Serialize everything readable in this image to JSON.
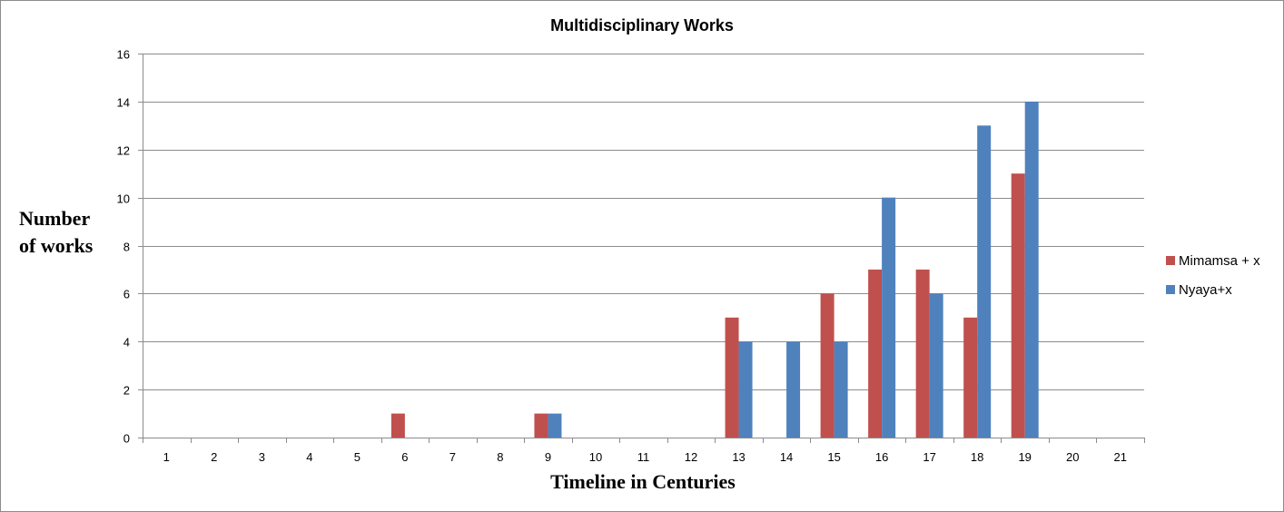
{
  "chart_data": {
    "type": "bar",
    "title": "Multidisciplinary Works",
    "xlabel": "Timeline in Centuries",
    "ylabel_lines": [
      "Number",
      "of works"
    ],
    "categories": [
      "1",
      "2",
      "3",
      "4",
      "5",
      "6",
      "7",
      "8",
      "9",
      "10",
      "11",
      "12",
      "13",
      "14",
      "15",
      "16",
      "17",
      "18",
      "19",
      "20",
      "21"
    ],
    "ylim": [
      0,
      16
    ],
    "yticks": [
      "0",
      "2",
      "4",
      "6",
      "8",
      "10",
      "12",
      "14",
      "16"
    ],
    "grid": true,
    "legend_position": "right",
    "series": [
      {
        "name": "Mimamsa + x",
        "color": "#c0504d",
        "values": [
          0,
          0,
          0,
          0,
          0,
          1,
          0,
          0,
          1,
          0,
          0,
          0,
          5,
          0,
          6,
          7,
          7,
          5,
          11,
          0,
          0
        ]
      },
      {
        "name": "Nyaya+x",
        "color": "#4f81bd",
        "values": [
          0,
          0,
          0,
          0,
          0,
          0,
          0,
          0,
          1,
          0,
          0,
          0,
          4,
          4,
          4,
          10,
          6,
          13,
          14,
          0,
          0
        ]
      }
    ]
  }
}
